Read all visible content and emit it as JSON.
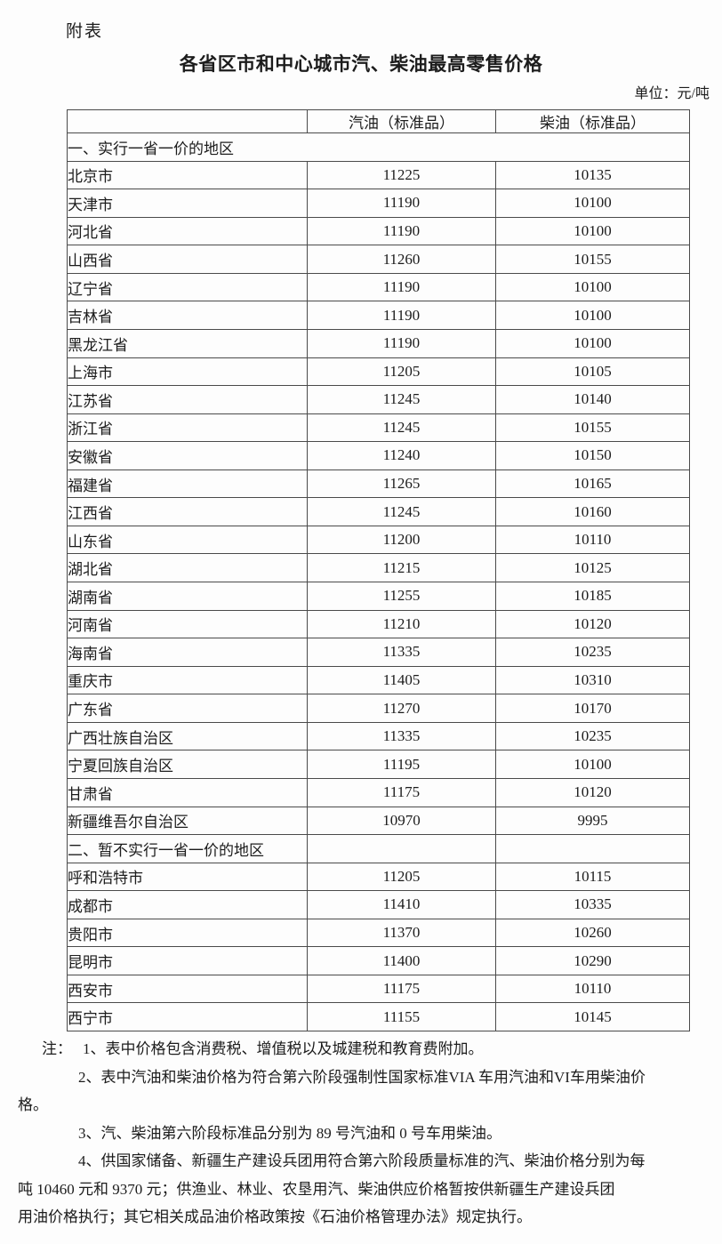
{
  "page": {
    "tag": "附表",
    "title": "各省区市和中心城市汽、柴油最高零售价格",
    "unit_label": "单位：元/吨"
  },
  "table": {
    "columns": [
      "",
      "汽油（标准品）",
      "柴油（标准品）"
    ],
    "sections": [
      {
        "label": "一、实行一省一价的地区",
        "merged": true,
        "rows": [
          {
            "region": "北京市",
            "gasoline": "11225",
            "diesel": "10135"
          },
          {
            "region": "天津市",
            "gasoline": "11190",
            "diesel": "10100"
          },
          {
            "region": "河北省",
            "gasoline": "11190",
            "diesel": "10100"
          },
          {
            "region": "山西省",
            "gasoline": "11260",
            "diesel": "10155"
          },
          {
            "region": "辽宁省",
            "gasoline": "11190",
            "diesel": "10100"
          },
          {
            "region": "吉林省",
            "gasoline": "11190",
            "diesel": "10100"
          },
          {
            "region": "黑龙江省",
            "gasoline": "11190",
            "diesel": "10100"
          },
          {
            "region": "上海市",
            "gasoline": "11205",
            "diesel": "10105"
          },
          {
            "region": "江苏省",
            "gasoline": "11245",
            "diesel": "10140"
          },
          {
            "region": "浙江省",
            "gasoline": "11245",
            "diesel": "10155"
          },
          {
            "region": "安徽省",
            "gasoline": "11240",
            "diesel": "10150"
          },
          {
            "region": "福建省",
            "gasoline": "11265",
            "diesel": "10165"
          },
          {
            "region": "江西省",
            "gasoline": "11245",
            "diesel": "10160"
          },
          {
            "region": "山东省",
            "gasoline": "11200",
            "diesel": "10110"
          },
          {
            "region": "湖北省",
            "gasoline": "11215",
            "diesel": "10125"
          },
          {
            "region": "湖南省",
            "gasoline": "11255",
            "diesel": "10185"
          },
          {
            "region": "河南省",
            "gasoline": "11210",
            "diesel": "10120"
          },
          {
            "region": "海南省",
            "gasoline": "11335",
            "diesel": "10235"
          },
          {
            "region": "重庆市",
            "gasoline": "11405",
            "diesel": "10310"
          },
          {
            "region": "广东省",
            "gasoline": "11270",
            "diesel": "10170"
          },
          {
            "region": "广西壮族自治区",
            "gasoline": "11335",
            "diesel": "10235"
          },
          {
            "region": "宁夏回族自治区",
            "gasoline": "11195",
            "diesel": "10100"
          },
          {
            "region": "甘肃省",
            "gasoline": "11175",
            "diesel": "10120"
          },
          {
            "region": "新疆维吾尔自治区",
            "gasoline": "10970",
            "diesel": "9995"
          }
        ]
      },
      {
        "label": "二、暂不实行一省一价的地区",
        "merged": false,
        "rows": [
          {
            "region": "呼和浩特市",
            "gasoline": "11205",
            "diesel": "10115"
          },
          {
            "region": "成都市",
            "gasoline": "11410",
            "diesel": "10335"
          },
          {
            "region": "贵阳市",
            "gasoline": "11370",
            "diesel": "10260"
          },
          {
            "region": "昆明市",
            "gasoline": "11400",
            "diesel": "10290"
          },
          {
            "region": "西安市",
            "gasoline": "11175",
            "diesel": "10110"
          },
          {
            "region": "西宁市",
            "gasoline": "11155",
            "diesel": "10145"
          }
        ]
      }
    ]
  },
  "notes": {
    "label": "注：",
    "items": [
      "1、表中价格包含消费税、增值税以及城建税和教育费附加。",
      "2、表中汽油和柴油价格为符合第六阶段强制性国家标准VIA 车用汽油和VI车用柴油价\n格。",
      "3、汽、柴油第六阶段标准品分别为 89 号汽油和 0 号车用柴油。",
      "4、供国家储备、新疆生产建设兵团用符合第六阶段质量标准的汽、柴油价格分别为每\n吨 10460 元和 9370 元；供渔业、林业、农垦用汽、柴油供应价格暂按供新疆生产建设兵团\n用油价格执行；其它相关成品油价格政策按《石油价格管理办法》规定执行。"
    ]
  }
}
